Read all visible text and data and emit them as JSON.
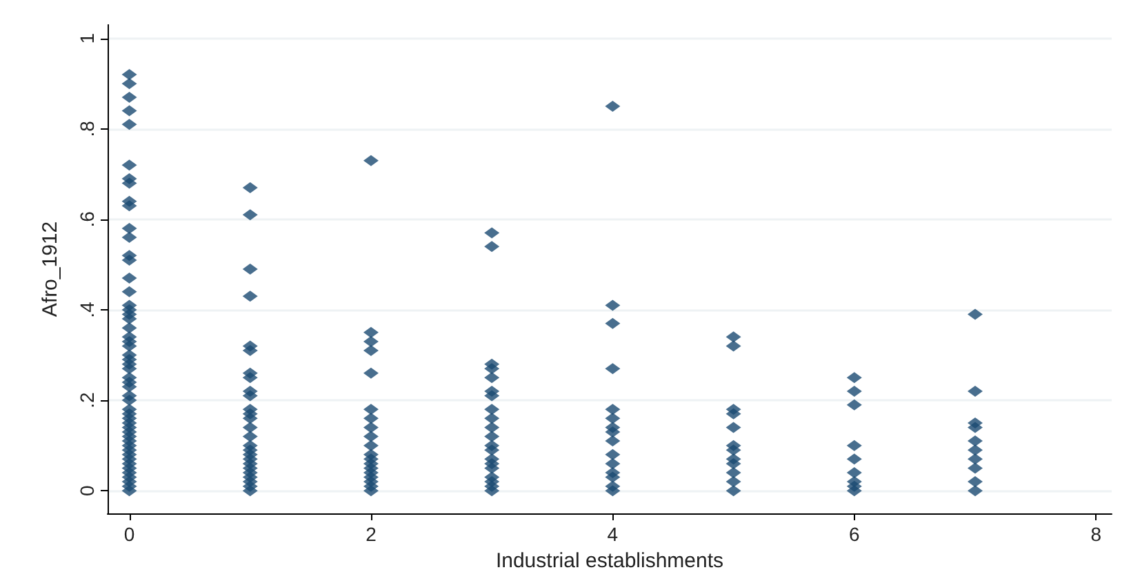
{
  "chart_data": {
    "type": "scatter",
    "xlabel": "Industrial establishments",
    "ylabel": "Afro_1912",
    "x": [
      0,
      0,
      0,
      0,
      0,
      0,
      0,
      0,
      0,
      0,
      0,
      0,
      0,
      0,
      0,
      0,
      0,
      0,
      0,
      0,
      0,
      0,
      0,
      0,
      0,
      0,
      0,
      0,
      0,
      0,
      0,
      0,
      0,
      0,
      0,
      0,
      0,
      0,
      0,
      0,
      0,
      0,
      0,
      0,
      0,
      0,
      0,
      0,
      0,
      0,
      0,
      0,
      1,
      1,
      1,
      1,
      1,
      1,
      1,
      1,
      1,
      1,
      1,
      1,
      1,
      1,
      1,
      1,
      1,
      1,
      1,
      1,
      1,
      1,
      1,
      1,
      1,
      1,
      2,
      2,
      2,
      2,
      2,
      2,
      2,
      2,
      2,
      2,
      2,
      2,
      2,
      2,
      2,
      2,
      2,
      2,
      2,
      3,
      3,
      3,
      3,
      3,
      3,
      3,
      3,
      3,
      3,
      3,
      3,
      3,
      3,
      3,
      3,
      3,
      3,
      3,
      3,
      4,
      4,
      4,
      4,
      4,
      4,
      4,
      4,
      4,
      4,
      4,
      4,
      4,
      4,
      4,
      5,
      5,
      5,
      5,
      5,
      5,
      5,
      5,
      5,
      5,
      5,
      5,
      6,
      6,
      6,
      6,
      6,
      6,
      6,
      6,
      6,
      7,
      7,
      7,
      7,
      7,
      7,
      7,
      7,
      7,
      7
    ],
    "values": [
      0.92,
      0.9,
      0.87,
      0.84,
      0.81,
      0.72,
      0.69,
      0.68,
      0.64,
      0.63,
      0.58,
      0.56,
      0.52,
      0.51,
      0.47,
      0.44,
      0.41,
      0.4,
      0.39,
      0.38,
      0.36,
      0.34,
      0.33,
      0.32,
      0.3,
      0.29,
      0.28,
      0.27,
      0.25,
      0.24,
      0.23,
      0.21,
      0.2,
      0.18,
      0.17,
      0.16,
      0.15,
      0.14,
      0.13,
      0.12,
      0.11,
      0.1,
      0.09,
      0.08,
      0.07,
      0.06,
      0.05,
      0.04,
      0.03,
      0.02,
      0.01,
      0,
      0.67,
      0.61,
      0.49,
      0.43,
      0.32,
      0.31,
      0.26,
      0.25,
      0.22,
      0.21,
      0.18,
      0.17,
      0.16,
      0.14,
      0.12,
      0.1,
      0.09,
      0.08,
      0.07,
      0.06,
      0.05,
      0.04,
      0.03,
      0.02,
      0.01,
      0,
      0.73,
      0.35,
      0.33,
      0.31,
      0.26,
      0.18,
      0.16,
      0.14,
      0.12,
      0.1,
      0.08,
      0.07,
      0.06,
      0.05,
      0.04,
      0.03,
      0.02,
      0.01,
      0,
      0.57,
      0.54,
      0.28,
      0.27,
      0.25,
      0.22,
      0.21,
      0.18,
      0.16,
      0.14,
      0.12,
      0.1,
      0.09,
      0.07,
      0.06,
      0.05,
      0.03,
      0.02,
      0.01,
      0,
      0.85,
      0.41,
      0.37,
      0.27,
      0.18,
      0.16,
      0.14,
      0.13,
      0.11,
      0.08,
      0.06,
      0.04,
      0.03,
      0.01,
      0,
      0.34,
      0.32,
      0.18,
      0.17,
      0.14,
      0.1,
      0.09,
      0.07,
      0.06,
      0.04,
      0.02,
      0,
      0.25,
      0.22,
      0.19,
      0.1,
      0.07,
      0.04,
      0.02,
      0.01,
      0,
      0.39,
      0.22,
      0.15,
      0.14,
      0.11,
      0.09,
      0.07,
      0.05,
      0.02,
      0
    ],
    "color": "#1a4a72",
    "marker": "diamond",
    "xlim": [
      -0.18,
      8.13
    ],
    "xticks": [
      0,
      2,
      4,
      6,
      8
    ],
    "ylim": [
      -0.05,
      1.03
    ],
    "yticks": [
      0,
      {
        "value": 0.2,
        "label": ".2"
      },
      {
        "value": 0.4,
        "label": ".4"
      },
      {
        "value": 0.6,
        "label": ".6"
      },
      {
        "value": 0.8,
        "label": ".8"
      },
      1
    ],
    "grid": "y"
  }
}
